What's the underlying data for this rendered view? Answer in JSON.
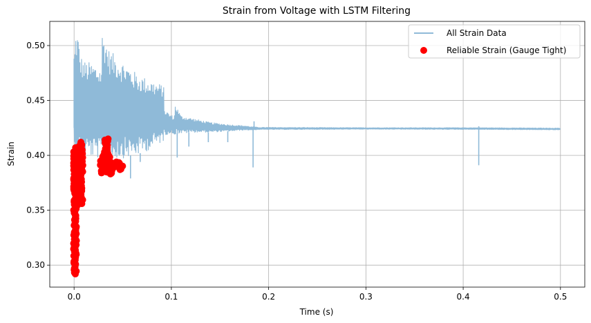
{
  "chart_data": {
    "type": "line",
    "title": "Strain from Voltage with LSTM Filtering",
    "xlabel": "Time (s)",
    "ylabel": "Strain",
    "xlim": [
      -0.025,
      0.525
    ],
    "ylim": [
      0.28,
      0.522
    ],
    "xticks": [
      0.0,
      0.1,
      0.2,
      0.3,
      0.4,
      0.5
    ],
    "xtick_labels": [
      "0.0",
      "0.1",
      "0.2",
      "0.3",
      "0.4",
      "0.5"
    ],
    "yticks": [
      0.3,
      0.35,
      0.4,
      0.45,
      0.5
    ],
    "ytick_labels": [
      "0.30",
      "0.35",
      "0.40",
      "0.45",
      "0.50"
    ],
    "grid": true,
    "legend_position": "top-right",
    "colors": {
      "all_strain": "#8fbad8",
      "reliable": "#ff0000",
      "grid": "#b0b0b0"
    },
    "series": [
      {
        "name": "All Strain Data",
        "kind": "line",
        "color": "#8fbad8",
        "envelope": [
          {
            "x": 0.0,
            "low": 0.405,
            "high": 0.43
          },
          {
            "x": 0.001,
            "low": 0.4,
            "high": 0.512
          },
          {
            "x": 0.004,
            "low": 0.398,
            "high": 0.512
          },
          {
            "x": 0.006,
            "low": 0.399,
            "high": 0.493
          },
          {
            "x": 0.01,
            "low": 0.4,
            "high": 0.486
          },
          {
            "x": 0.02,
            "low": 0.398,
            "high": 0.484
          },
          {
            "x": 0.028,
            "low": 0.397,
            "high": 0.48
          },
          {
            "x": 0.029,
            "low": 0.395,
            "high": 0.512
          },
          {
            "x": 0.032,
            "low": 0.396,
            "high": 0.508
          },
          {
            "x": 0.036,
            "low": 0.396,
            "high": 0.496
          },
          {
            "x": 0.045,
            "low": 0.397,
            "high": 0.489
          },
          {
            "x": 0.055,
            "low": 0.398,
            "high": 0.482
          },
          {
            "x": 0.065,
            "low": 0.4,
            "high": 0.474
          },
          {
            "x": 0.075,
            "low": 0.404,
            "high": 0.47
          },
          {
            "x": 0.085,
            "low": 0.409,
            "high": 0.466
          },
          {
            "x": 0.092,
            "low": 0.413,
            "high": 0.464
          },
          {
            "x": 0.093,
            "low": 0.418,
            "high": 0.442
          },
          {
            "x": 0.098,
            "low": 0.42,
            "high": 0.438
          },
          {
            "x": 0.103,
            "low": 0.419,
            "high": 0.435
          },
          {
            "x": 0.104,
            "low": 0.419,
            "high": 0.447
          },
          {
            "x": 0.11,
            "low": 0.42,
            "high": 0.436
          },
          {
            "x": 0.125,
            "low": 0.421,
            "high": 0.433
          },
          {
            "x": 0.14,
            "low": 0.421,
            "high": 0.43
          },
          {
            "x": 0.16,
            "low": 0.422,
            "high": 0.428
          },
          {
            "x": 0.175,
            "low": 0.423,
            "high": 0.427
          },
          {
            "x": 0.184,
            "low": 0.423,
            "high": 0.426
          },
          {
            "x": 0.19,
            "low": 0.4235,
            "high": 0.4255
          },
          {
            "x": 0.3,
            "low": 0.4238,
            "high": 0.4252
          },
          {
            "x": 0.415,
            "low": 0.4236,
            "high": 0.4252
          },
          {
            "x": 0.5,
            "low": 0.4232,
            "high": 0.4248
          }
        ],
        "spikes": [
          {
            "x": 0.0,
            "from": 0.425,
            "to": 0.488
          },
          {
            "x": 0.002,
            "from": 0.42,
            "to": 0.455
          },
          {
            "x": 0.058,
            "from": 0.4,
            "to": 0.379
          },
          {
            "x": 0.068,
            "from": 0.402,
            "to": 0.394
          },
          {
            "x": 0.106,
            "from": 0.42,
            "to": 0.398
          },
          {
            "x": 0.118,
            "from": 0.421,
            "to": 0.408
          },
          {
            "x": 0.138,
            "from": 0.421,
            "to": 0.412
          },
          {
            "x": 0.158,
            "from": 0.422,
            "to": 0.412
          },
          {
            "x": 0.184,
            "from": 0.424,
            "to": 0.389
          },
          {
            "x": 0.185,
            "from": 0.424,
            "to": 0.431
          },
          {
            "x": 0.416,
            "from": 0.424,
            "to": 0.391
          },
          {
            "x": 0.416,
            "from": 0.424,
            "to": 0.4265
          }
        ]
      },
      {
        "name": "Reliable Strain (Gauge Tight)",
        "kind": "scatter",
        "color": "#ff0000",
        "clusters": [
          {
            "x_min": -0.0005,
            "x_max": 0.0025,
            "y_min": 0.292,
            "y_max": 0.407
          },
          {
            "x_min": 0.0015,
            "x_max": 0.006,
            "y_min": 0.355,
            "y_max": 0.408
          },
          {
            "x_min": 0.0055,
            "x_max": 0.009,
            "y_min": 0.356,
            "y_max": 0.412
          },
          {
            "x_min": 0.027,
            "x_max": 0.033,
            "y_min": 0.384,
            "y_max": 0.403
          },
          {
            "x_min": 0.031,
            "x_max": 0.035,
            "y_min": 0.388,
            "y_max": 0.415
          },
          {
            "x_min": 0.034,
            "x_max": 0.04,
            "y_min": 0.383,
            "y_max": 0.4
          },
          {
            "x_min": 0.04,
            "x_max": 0.05,
            "y_min": 0.387,
            "y_max": 0.394
          }
        ]
      }
    ]
  }
}
